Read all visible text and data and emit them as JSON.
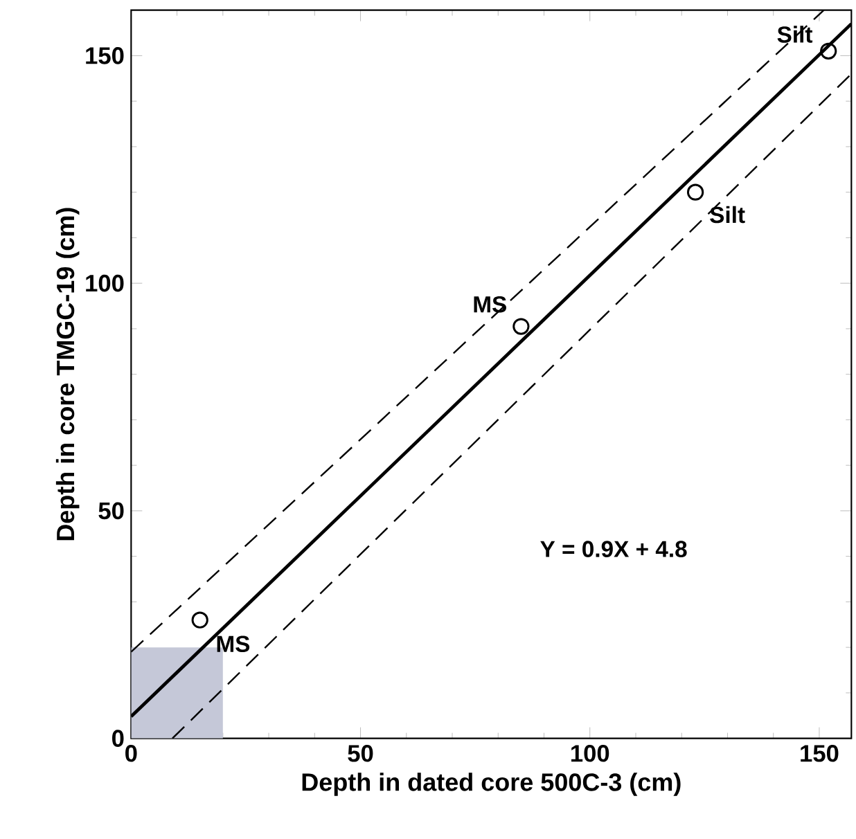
{
  "chart_data": {
    "type": "scatter",
    "xlabel": "Depth in dated core 500C-3 (cm)",
    "ylabel": "Depth in core TMGC-19 (cm)",
    "xlim": [
      0,
      157
    ],
    "ylim": [
      0,
      160
    ],
    "xticks": [
      0,
      50,
      100,
      150
    ],
    "yticks": [
      0,
      50,
      100,
      150
    ],
    "grid": false,
    "series": [
      {
        "type": "line",
        "color": "#000000",
        "line_style": "solid",
        "marker": "none",
        "x": [
          0,
          157
        ],
        "values": [
          4.8,
          157
        ]
      },
      {
        "type": "line",
        "color": "#000000",
        "line_style": "dashed",
        "marker": "none",
        "x": [
          0,
          151
        ],
        "values": [
          19,
          160
        ]
      },
      {
        "type": "line",
        "color": "#000000",
        "line_style": "dashed",
        "marker": "none",
        "x": [
          9,
          157
        ],
        "values": [
          0,
          146
        ]
      },
      {
        "color": "#000000",
        "marker": "circle",
        "x": [
          15,
          85,
          123,
          152
        ],
        "values": [
          26,
          90.5,
          120,
          151
        ]
      }
    ],
    "bands": [
      {
        "axis": "x",
        "from": 0,
        "to": 20,
        "color": "#c5c8d8"
      }
    ],
    "annotations": [
      {
        "text": "MS",
        "x": 15,
        "y": 26
      },
      {
        "text": "MS",
        "x": 85,
        "y": 90.5
      },
      {
        "text": "Silt",
        "x": 123,
        "y": 120
      },
      {
        "text": "Silt",
        "x": 152,
        "y": 151
      },
      "Y = 0.9X + 4.8"
    ]
  }
}
